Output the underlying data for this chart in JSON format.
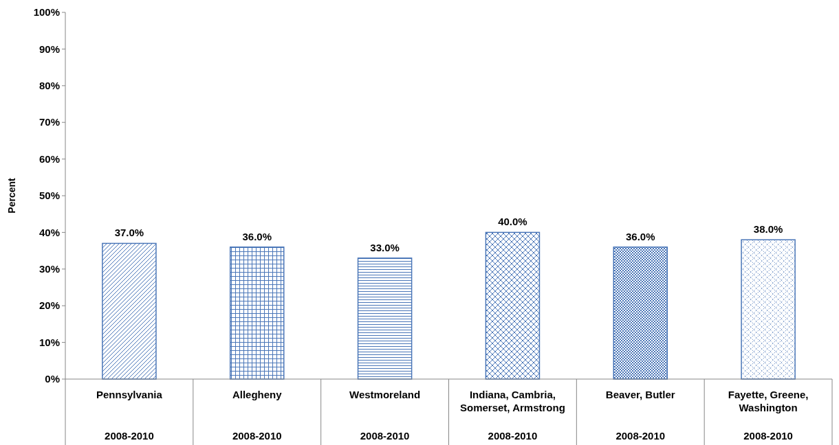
{
  "chart_data": {
    "type": "bar",
    "ylabel": "Percent",
    "categories": [
      "Pennsylvania\n2008-2010",
      "Allegheny\n2008-2010",
      "Westmoreland\n2008-2010",
      "Indiana, Cambria, Somerset, Armstrong\n2008-2010",
      "Beaver, Butler\n2008-2010",
      "Fayette, Greene, Washington\n2008-2010"
    ],
    "values": [
      37,
      36,
      33,
      40,
      36,
      38
    ],
    "value_labels": [
      "37.0%",
      "36.0%",
      "33.0%",
      "40.0%",
      "36.0%",
      "38.0%"
    ],
    "colors": [
      "#4a76b8",
      "#4a76b8",
      "#4a76b8",
      "#4a76b8",
      "#4a76b8",
      "#4a76b8"
    ],
    "ylim": [
      0,
      100
    ],
    "yticks": [
      {
        "value": 0,
        "label": "0%"
      },
      {
        "value": 10,
        "label": "10%"
      },
      {
        "value": 20,
        "label": "20%"
      },
      {
        "value": 30,
        "label": "30%"
      },
      {
        "value": 40,
        "label": "40%"
      },
      {
        "value": 50,
        "label": "50%"
      },
      {
        "value": 60,
        "label": "60%"
      },
      {
        "value": 70,
        "label": "70%"
      },
      {
        "value": 80,
        "label": "80%"
      },
      {
        "value": 90,
        "label": "90%"
      },
      {
        "value": 100,
        "label": "100%"
      }
    ],
    "grid": false
  }
}
